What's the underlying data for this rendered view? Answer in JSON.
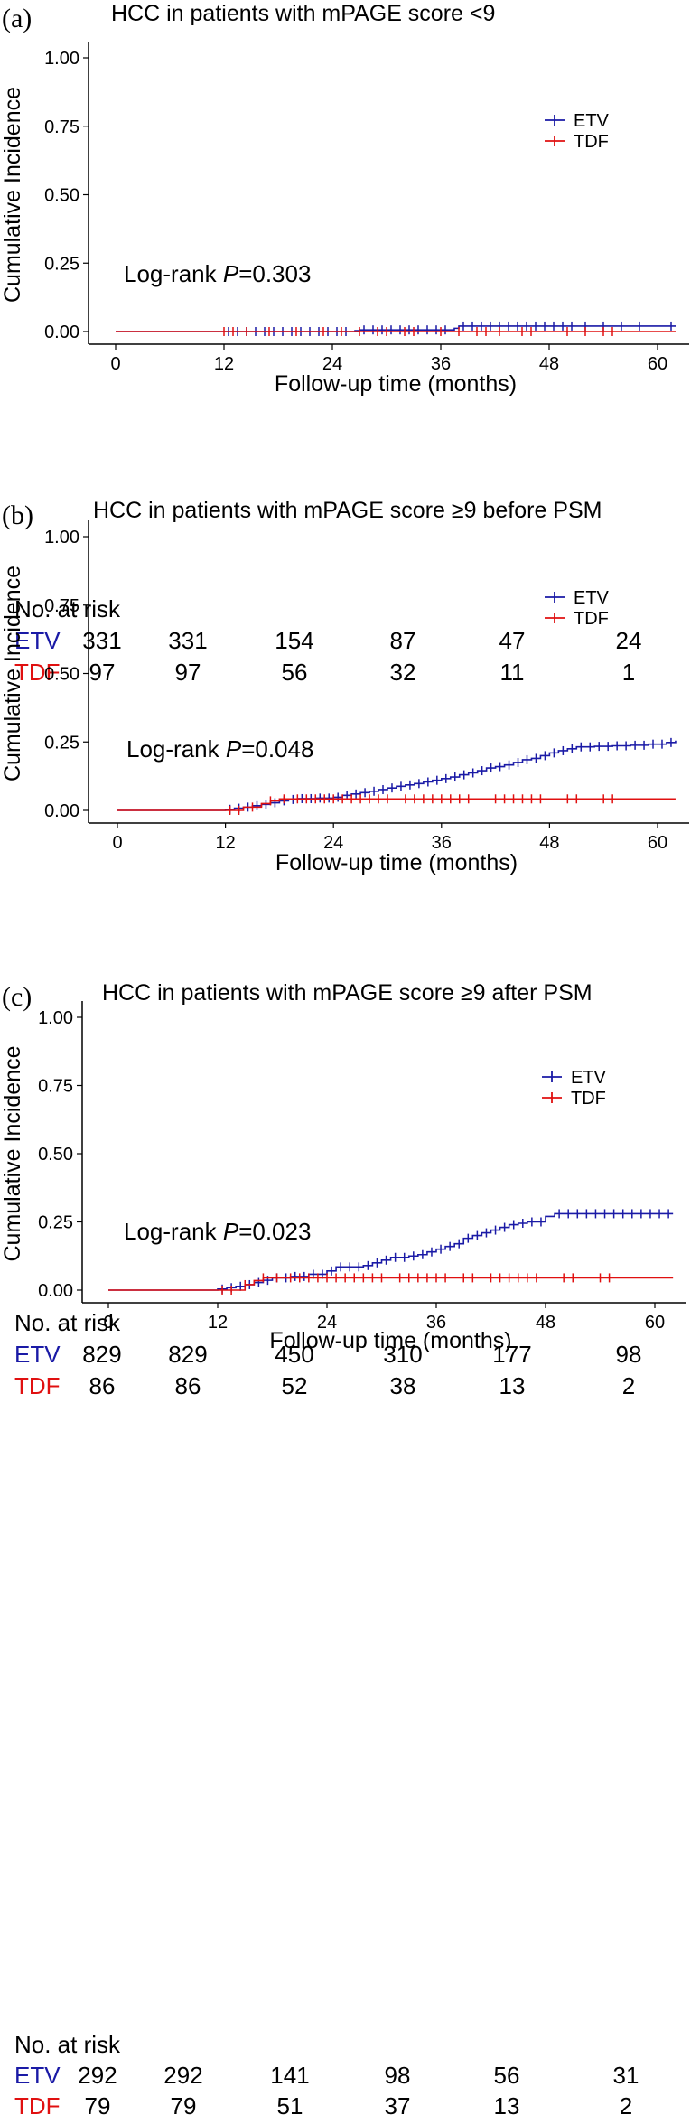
{
  "colors": {
    "etv": "#1a1aa6",
    "tdf": "#e01010",
    "axis": "#000000"
  },
  "chart_data": [
    {
      "type": "line",
      "panel_label": "(a)",
      "title": "HCC in patients with mPAGE score <9",
      "xlabel": "Follow-up time (months)",
      "ylabel": "Cumulative Incidence",
      "xlim": [
        0,
        62
      ],
      "ylim": [
        0,
        1
      ],
      "x_ticks": [
        "0",
        "12",
        "24",
        "36",
        "48",
        "60"
      ],
      "y_ticks": [
        "0.00",
        "0.25",
        "0.50",
        "0.75",
        "1.00"
      ],
      "legend": [
        "ETV",
        "TDF"
      ],
      "log_rank_prefix": "Log-rank ",
      "log_rank_P": "P",
      "log_rank_value": "=0.303",
      "series": [
        {
          "name": "ETV",
          "color_key": "etv",
          "steps": [
            [
              0,
              0
            ],
            [
              26.5,
              0.003
            ],
            [
              27,
              0.006
            ],
            [
              37.5,
              0.012
            ],
            [
              38,
              0.02
            ],
            [
              62,
              0.02
            ]
          ],
          "censors": [
            12.5,
            13.5,
            14.5,
            15.5,
            16.5,
            17.5,
            18.5,
            19.5,
            20.5,
            21.5,
            22.5,
            23.5,
            24.5,
            25.5,
            27.5,
            28.5,
            29.5,
            30.5,
            31.5,
            32.5,
            33.5,
            34.5,
            35.5,
            36.5,
            38.5,
            39.5,
            40.5,
            41.5,
            42.5,
            43.5,
            44.5,
            45.5,
            46.5,
            47.5,
            48.5,
            49.5,
            50.5,
            52,
            54,
            56,
            58,
            61.5
          ]
        },
        {
          "name": "TDF",
          "color_key": "tdf",
          "steps": [
            [
              0,
              0
            ],
            [
              62,
              0
            ]
          ],
          "censors": [
            12,
            13,
            14.5,
            17,
            20,
            23,
            25,
            27,
            29,
            30,
            32,
            33,
            36,
            38,
            40,
            41,
            42.5,
            45,
            46,
            50,
            52,
            54,
            55
          ]
        }
      ],
      "risk_table": {
        "header": "No. at risk",
        "rows": [
          {
            "name": "ETV",
            "color_key": "etv",
            "values": [
              "331",
              "331",
              "154",
              "87",
              "47",
              "24"
            ]
          },
          {
            "name": "TDF",
            "color_key": "tdf",
            "values": [
              "97",
              "97",
              "56",
              "32",
              "11",
              "1"
            ]
          }
        ]
      }
    },
    {
      "type": "line",
      "panel_label": "(b)",
      "title": "HCC in patients with mPAGE score ≥9 before PSM",
      "xlabel": "Follow-up time (months)",
      "ylabel": "Cumulative Incidence",
      "xlim": [
        0,
        62
      ],
      "ylim": [
        0,
        1
      ],
      "x_ticks": [
        "0",
        "12",
        "24",
        "36",
        "48",
        "60"
      ],
      "y_ticks": [
        "0.00",
        "0.25",
        "0.50",
        "0.75",
        "1.00"
      ],
      "legend": [
        "ETV",
        "TDF"
      ],
      "log_rank_prefix": "Log-rank ",
      "log_rank_P": "P",
      "log_rank_value": "=0.048",
      "series": [
        {
          "name": "ETV",
          "color_key": "etv",
          "steps": [
            [
              0,
              0
            ],
            [
              12,
              0.004
            ],
            [
              13,
              0.008
            ],
            [
              14,
              0.012
            ],
            [
              15,
              0.017
            ],
            [
              16,
              0.022
            ],
            [
              17,
              0.028
            ],
            [
              18,
              0.035
            ],
            [
              19,
              0.04
            ],
            [
              20,
              0.043
            ],
            [
              22,
              0.045
            ],
            [
              24,
              0.048
            ],
            [
              25,
              0.055
            ],
            [
              26,
              0.06
            ],
            [
              27,
              0.065
            ],
            [
              28,
              0.07
            ],
            [
              29,
              0.076
            ],
            [
              30,
              0.082
            ],
            [
              31,
              0.088
            ],
            [
              32,
              0.093
            ],
            [
              33,
              0.098
            ],
            [
              34,
              0.104
            ],
            [
              35,
              0.11
            ],
            [
              36,
              0.116
            ],
            [
              37,
              0.122
            ],
            [
              38,
              0.13
            ],
            [
              39,
              0.137
            ],
            [
              40,
              0.145
            ],
            [
              41,
              0.155
            ],
            [
              42,
              0.16
            ],
            [
              43,
              0.166
            ],
            [
              44,
              0.175
            ],
            [
              45,
              0.185
            ],
            [
              46,
              0.19
            ],
            [
              47,
              0.2
            ],
            [
              48,
              0.21
            ],
            [
              49,
              0.218
            ],
            [
              50,
              0.225
            ],
            [
              51,
              0.232
            ],
            [
              53,
              0.234
            ],
            [
              55,
              0.236
            ],
            [
              57,
              0.238
            ],
            [
              59,
              0.242
            ],
            [
              61,
              0.248
            ],
            [
              62,
              0.255
            ]
          ],
          "censors": [
            12.5,
            13.5,
            14.5,
            15.5,
            16.5,
            17.5,
            18.5,
            19.5,
            20.5,
            21.5,
            22.5,
            23.5,
            24.5,
            25.5,
            26.5,
            27.5,
            28.5,
            29.5,
            30.5,
            31.5,
            32.5,
            33.5,
            34.5,
            35.5,
            36.5,
            37.5,
            38.5,
            39.5,
            40.5,
            41.5,
            42.5,
            43.5,
            44.5,
            45.5,
            46.5,
            47.5,
            48.5,
            49.5,
            50.5,
            51.5,
            52.5,
            53.5,
            54.5,
            55.5,
            56.5,
            57.5,
            58.5,
            59.5,
            60.5,
            61.5
          ]
        },
        {
          "name": "TDF",
          "color_key": "tdf",
          "steps": [
            [
              0,
              0
            ],
            [
              14,
              0.012
            ],
            [
              16,
              0.025
            ],
            [
              17,
              0.035
            ],
            [
              18,
              0.042
            ],
            [
              62,
              0.042
            ]
          ],
          "censors": [
            12.5,
            13.5,
            15,
            17,
            18.5,
            20,
            21,
            22,
            23,
            24,
            25,
            26,
            27,
            28,
            29,
            30,
            32,
            33,
            34,
            35,
            36,
            37,
            38,
            39,
            42,
            43,
            44,
            45,
            46,
            47,
            50,
            51,
            54,
            55
          ]
        }
      ],
      "risk_table": {
        "header": "No. at risk",
        "rows": [
          {
            "name": "ETV",
            "color_key": "etv",
            "values": [
              "829",
              "829",
              "450",
              "310",
              "177",
              "98"
            ]
          },
          {
            "name": "TDF",
            "color_key": "tdf",
            "values": [
              "86",
              "86",
              "52",
              "38",
              "13",
              "2"
            ]
          }
        ]
      }
    },
    {
      "type": "line",
      "panel_label": "(c)",
      "title": "HCC in patients with mPAGE score ≥9 after PSM",
      "xlabel": "Follow-up time (months)",
      "ylabel": "Cumulative Incidence",
      "xlim": [
        0,
        62
      ],
      "ylim": [
        0,
        1
      ],
      "x_ticks": [
        "0",
        "12",
        "24",
        "36",
        "48",
        "60"
      ],
      "y_ticks": [
        "0.00",
        "0.25",
        "0.50",
        "0.75",
        "1.00"
      ],
      "legend": [
        "ETV",
        "TDF"
      ],
      "log_rank_prefix": "Log-rank ",
      "log_rank_P": "P",
      "log_rank_value": "=0.023",
      "series": [
        {
          "name": "ETV",
          "color_key": "etv",
          "steps": [
            [
              0,
              0
            ],
            [
              12,
              0.004
            ],
            [
              13,
              0.009
            ],
            [
              14,
              0.014
            ],
            [
              15,
              0.02
            ],
            [
              16,
              0.028
            ],
            [
              17,
              0.036
            ],
            [
              18,
              0.045
            ],
            [
              20,
              0.05
            ],
            [
              22,
              0.058
            ],
            [
              24,
              0.07
            ],
            [
              25,
              0.085
            ],
            [
              28,
              0.09
            ],
            [
              29,
              0.1
            ],
            [
              30,
              0.11
            ],
            [
              31,
              0.12
            ],
            [
              33,
              0.125
            ],
            [
              34,
              0.13
            ],
            [
              35,
              0.14
            ],
            [
              36,
              0.15
            ],
            [
              37,
              0.16
            ],
            [
              38,
              0.17
            ],
            [
              39,
              0.19
            ],
            [
              40,
              0.2
            ],
            [
              41,
              0.21
            ],
            [
              42,
              0.22
            ],
            [
              43,
              0.23
            ],
            [
              44,
              0.24
            ],
            [
              45,
              0.245
            ],
            [
              46,
              0.25
            ],
            [
              48,
              0.27
            ],
            [
              49,
              0.28
            ],
            [
              62,
              0.28
            ]
          ],
          "censors": [
            12.5,
            13.5,
            14.5,
            15.5,
            16.5,
            17.5,
            18.5,
            19.5,
            20.5,
            21.5,
            22.5,
            23.5,
            24.5,
            25.5,
            26.5,
            27.5,
            28.5,
            29.5,
            30.5,
            31.5,
            32.5,
            33.5,
            34.5,
            35.5,
            36.5,
            37.5,
            38.5,
            39.5,
            40.5,
            41.5,
            42.5,
            43.5,
            44.5,
            45.5,
            46.5,
            47.5,
            49.5,
            50.5,
            51.5,
            52.5,
            53.5,
            54.5,
            55.5,
            56.5,
            57.5,
            58.5,
            59.5,
            60.5,
            61.5
          ]
        },
        {
          "name": "TDF",
          "color_key": "tdf",
          "steps": [
            [
              0,
              0
            ],
            [
              15,
              0.02
            ],
            [
              16,
              0.035
            ],
            [
              17,
              0.045
            ],
            [
              62,
              0.045
            ]
          ],
          "censors": [
            12.5,
            13.5,
            15,
            17,
            18.5,
            20,
            21,
            22,
            23,
            24,
            25,
            26,
            27,
            28,
            29,
            30,
            32,
            33,
            34,
            35,
            36,
            37,
            39,
            40,
            42,
            43,
            44,
            45,
            46,
            47,
            50,
            51,
            54,
            55
          ]
        }
      ],
      "risk_table": {
        "header": "No. at risk",
        "rows": [
          {
            "name": "ETV",
            "color_key": "etv",
            "values": [
              "292",
              "292",
              "141",
              "98",
              "56",
              "31"
            ]
          },
          {
            "name": "TDF",
            "color_key": "tdf",
            "values": [
              "79",
              "79",
              "51",
              "37",
              "13",
              "2"
            ]
          }
        ]
      }
    }
  ]
}
